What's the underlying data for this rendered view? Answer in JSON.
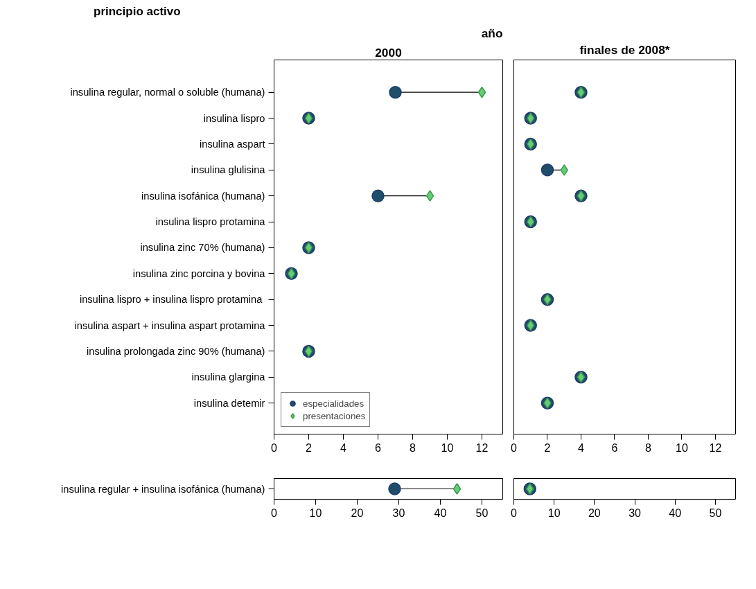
{
  "chart_data": [
    {
      "type": "scatter",
      "title": "año",
      "subtitle": "2000",
      "ylabel": "principio activo",
      "orientation": "horizontal",
      "legend": "bottom left",
      "grid": false,
      "categories": [
        "insulina regular, normal o soluble (humana)",
        "insulina lispro",
        "insulina aspart",
        "insulina glulisina",
        "insulina isofánica (humana)",
        "insulina lispro protamina",
        "insulina zinc 70% (humana)",
        "insulina zinc porcina y bovina",
        "insulina lispro +  insulina lispro protamina",
        "insulina aspart + insulina aspart protamina",
        "insulina prolongada zinc 90% (humana)",
        "insulina glargina",
        "insulina detemir"
      ],
      "series": [
        {
          "name": "especialidades",
          "color": "#1f4e6b",
          "marker": "circle",
          "values": [
            7,
            2,
            null,
            null,
            6,
            null,
            2,
            1,
            null,
            null,
            2,
            null,
            null
          ]
        },
        {
          "name": "presentaciones",
          "color": "#66cc77",
          "marker": "diamond",
          "values": [
            12,
            2,
            null,
            null,
            9,
            null,
            2,
            1,
            null,
            null,
            2,
            null,
            null
          ]
        }
      ],
      "xlim": [
        0,
        13.2
      ],
      "xticks": [
        0,
        2,
        4,
        6,
        8,
        10,
        12
      ]
    },
    {
      "type": "scatter",
      "subtitle": "finales de 2008*",
      "orientation": "horizontal",
      "grid": false,
      "tick_labels": "x",
      "categories": [
        null,
        null,
        null,
        null,
        null,
        null,
        null,
        null,
        null,
        null,
        null,
        null,
        null
      ],
      "series": [
        {
          "color": "#1f4e6b",
          "marker": "circle",
          "values": [
            4,
            1,
            1,
            2,
            4,
            1,
            null,
            null,
            2,
            1,
            null,
            4,
            2
          ]
        },
        {
          "color": "#66cc77",
          "marker": "diamond",
          "values": [
            4,
            1,
            1,
            3,
            4,
            1,
            null,
            null,
            2,
            1,
            null,
            4,
            2
          ]
        }
      ],
      "xlim": [
        0,
        13.2
      ],
      "xticks": [
        0,
        2,
        4,
        6,
        8,
        10,
        12
      ]
    },
    {
      "type": "scatter",
      "orientation": "horizontal",
      "grid": false,
      "categories": [
        "insulina regular + insulina isofánica (humana)"
      ],
      "series": [
        {
          "color": "#1f4e6b",
          "marker": "circle",
          "values": [
            29
          ]
        },
        {
          "color": "#66cc77",
          "marker": "diamond",
          "values": [
            44
          ]
        }
      ],
      "xlim": [
        0,
        55
      ],
      "xticks": [
        0,
        10,
        20,
        30,
        40,
        50
      ]
    },
    {
      "type": "scatter",
      "orientation": "horizontal",
      "grid": false,
      "tick_labels": "x",
      "categories": [
        null
      ],
      "series": [
        {
          "color": "#1f4e6b",
          "marker": "circle",
          "values": [
            4
          ]
        },
        {
          "color": "#66cc77",
          "marker": "diamond",
          "values": [
            4
          ]
        }
      ],
      "xlim": [
        0,
        55
      ],
      "xticks": [
        0,
        10,
        20,
        30,
        40,
        50
      ]
    }
  ]
}
